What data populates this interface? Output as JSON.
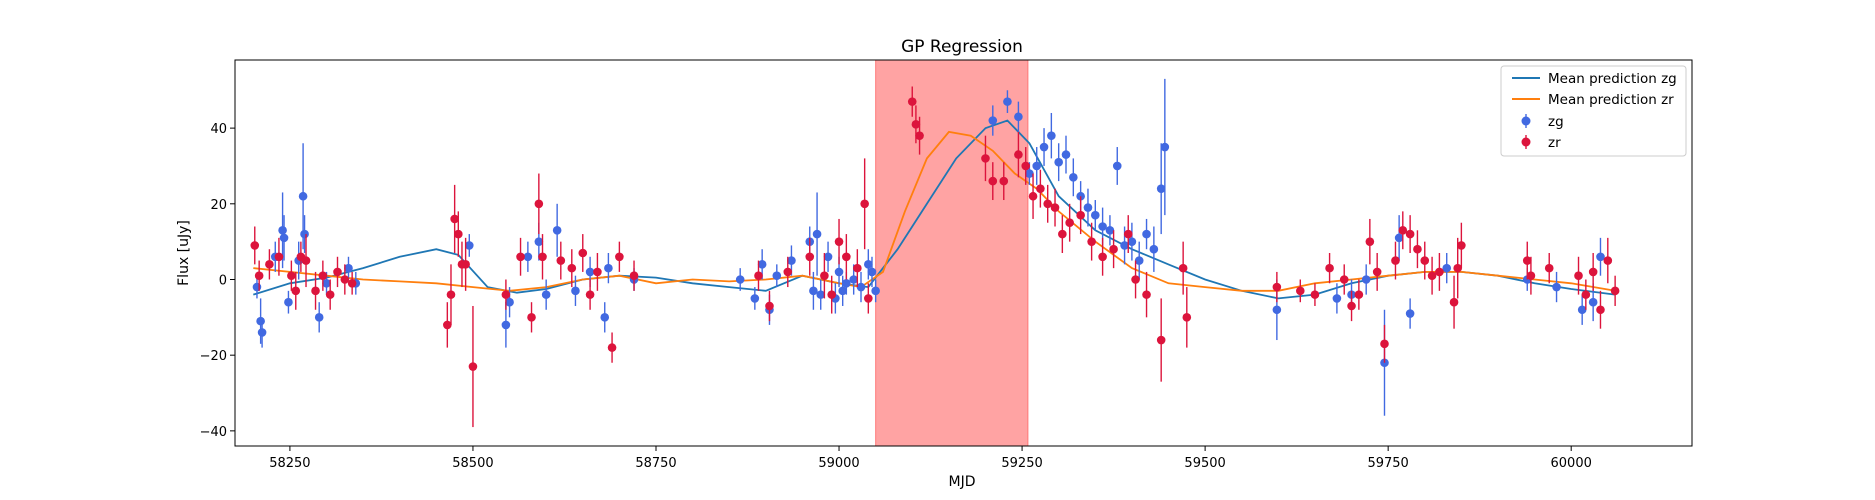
{
  "chart_data": {
    "type": "scatter",
    "title": "GP Regression",
    "xlabel": "MJD",
    "ylabel": "Flux [uJy]",
    "xlim": [
      58175,
      60165
    ],
    "ylim": [
      -44,
      58
    ],
    "xticks": [
      58250,
      58500,
      58750,
      59000,
      59250,
      59500,
      59750,
      60000
    ],
    "yticks": [
      -40,
      -20,
      0,
      20,
      40
    ],
    "grid": false,
    "legend_position": "top-right",
    "highlight_span": {
      "x": [
        59050,
        59258
      ],
      "color": "#ff6666"
    },
    "colors": {
      "zg": "#4169e1",
      "zr": "#dc143c",
      "mean_zg": "#1f77b4",
      "mean_zr": "#ff7f0e"
    },
    "legend": [
      "Mean prediction zg",
      "Mean prediction zr",
      "zg",
      "zr"
    ],
    "series": [
      {
        "name": "Mean prediction zg",
        "kind": "line",
        "x": [
          58200,
          58250,
          58300,
          58350,
          58400,
          58450,
          58480,
          58520,
          58560,
          58600,
          58650,
          58700,
          58750,
          58800,
          58850,
          58900,
          58950,
          59000,
          59040,
          59080,
          59120,
          59160,
          59200,
          59230,
          59260,
          59300,
          59350,
          59400,
          59450,
          59500,
          59550,
          59600,
          59650,
          59700,
          59750,
          59800,
          59850,
          59900,
          59950,
          60000,
          60060
        ],
        "y": [
          -4,
          -1,
          0.5,
          3,
          6,
          8,
          6.5,
          -2,
          -3.5,
          -2.5,
          0,
          1,
          0.5,
          -1,
          -2,
          -3,
          1,
          -1,
          -2,
          8,
          20,
          32,
          40,
          42,
          36,
          22,
          13,
          8,
          4,
          0,
          -3,
          -5,
          -4,
          -1,
          1,
          2,
          2,
          1,
          -1,
          -2.5,
          -4
        ]
      },
      {
        "name": "Mean prediction zr",
        "kind": "line",
        "x": [
          58200,
          58250,
          58300,
          58350,
          58400,
          58450,
          58500,
          58550,
          58600,
          58650,
          58700,
          58750,
          58800,
          58850,
          58900,
          58950,
          59000,
          59030,
          59060,
          59090,
          59120,
          59150,
          59180,
          59210,
          59240,
          59270,
          59300,
          59350,
          59400,
          59450,
          59500,
          59550,
          59600,
          59650,
          59700,
          59750,
          59800,
          59850,
          59900,
          59950,
          60000,
          60060
        ],
        "y": [
          3,
          2,
          1,
          0,
          -0.5,
          -1,
          -2,
          -3,
          -2,
          0,
          1,
          -1,
          0,
          -0.5,
          0,
          1,
          -1,
          -2,
          2,
          18,
          32,
          39,
          38,
          34,
          28,
          24,
          18,
          10,
          3,
          -1,
          -2,
          -3,
          -3,
          -1,
          0,
          1,
          2,
          2,
          1,
          0,
          -1,
          -3
        ]
      },
      {
        "name": "zg",
        "kind": "errorbar",
        "x": [
          58205,
          58210,
          58212,
          58230,
          58240,
          58242,
          58248,
          58262,
          58268,
          58270,
          58290,
          58300,
          58330,
          58340,
          58495,
          58545,
          58550,
          58575,
          58590,
          58600,
          58615,
          58640,
          58660,
          58680,
          58685,
          58720,
          58865,
          58885,
          58895,
          58905,
          58915,
          58935,
          58960,
          58965,
          58970,
          58975,
          58985,
          58995,
          59000,
          59005,
          59010,
          59020,
          59030,
          59040,
          59045,
          59050,
          59210,
          59230,
          59245,
          59260,
          59270,
          59280,
          59290,
          59300,
          59310,
          59320,
          59330,
          59340,
          59350,
          59360,
          59370,
          59380,
          59390,
          59400,
          59410,
          59420,
          59430,
          59440,
          59445,
          59598,
          59680,
          59700,
          59720,
          59745,
          59765,
          59780,
          59830,
          59940,
          59980,
          60015,
          60030,
          60040
        ],
        "y": [
          -2,
          -11,
          -14,
          6,
          13,
          11,
          -6,
          5,
          22,
          12,
          -10,
          -1,
          3,
          -1,
          9,
          -12,
          -6,
          6,
          10,
          -4,
          13,
          -3,
          2,
          -10,
          3,
          0,
          0,
          -5,
          4,
          -8,
          1,
          5,
          10,
          -3,
          12,
          -4,
          6,
          -5,
          2,
          -3,
          -1,
          0,
          -2,
          4,
          2,
          -3,
          42,
          47,
          43,
          28,
          30,
          35,
          38,
          31,
          33,
          27,
          22,
          19,
          17,
          14,
          13,
          30,
          9,
          10,
          5,
          12,
          8,
          24,
          35,
          -8,
          -5,
          -4,
          0,
          -22,
          11,
          -9,
          3,
          0,
          -2,
          -8,
          -6,
          6
        ],
        "err": [
          3,
          6,
          4,
          4,
          10,
          6,
          3,
          5,
          14,
          5,
          4,
          3,
          3,
          3,
          3,
          6,
          4,
          4,
          5,
          4,
          7,
          4,
          4,
          4,
          4,
          3,
          3,
          3,
          4,
          4,
          3,
          4,
          4,
          5,
          11,
          4,
          4,
          4,
          4,
          4,
          3,
          4,
          4,
          4,
          4,
          3,
          4,
          3,
          4,
          3,
          5,
          5,
          6,
          5,
          5,
          5,
          4,
          5,
          4,
          5,
          4,
          5,
          5,
          5,
          5,
          4,
          6,
          12,
          18,
          8,
          4,
          4,
          4,
          14,
          6,
          4,
          4,
          3,
          4,
          4,
          5,
          5
        ]
      },
      {
        "name": "zr",
        "kind": "errorbar",
        "x": [
          58202,
          58208,
          58222,
          58235,
          58252,
          58258,
          58265,
          58272,
          58285,
          58295,
          58305,
          58315,
          58325,
          58335,
          58465,
          58470,
          58475,
          58480,
          58485,
          58490,
          58500,
          58545,
          58565,
          58580,
          58590,
          58595,
          58620,
          58635,
          58650,
          58660,
          58670,
          58690,
          58700,
          58720,
          58890,
          58905,
          58930,
          58960,
          58980,
          58990,
          59000,
          59010,
          59025,
          59035,
          59040,
          59100,
          59105,
          59110,
          59200,
          59210,
          59225,
          59245,
          59255,
          59265,
          59275,
          59285,
          59295,
          59305,
          59315,
          59330,
          59345,
          59360,
          59375,
          59395,
          59405,
          59420,
          59440,
          59470,
          59475,
          59598,
          59630,
          59650,
          59670,
          59690,
          59700,
          59710,
          59725,
          59735,
          59745,
          59760,
          59770,
          59780,
          59790,
          59800,
          59810,
          59820,
          59840,
          59845,
          59850,
          59940,
          59945,
          59970,
          60010,
          60020,
          60030,
          60040,
          60050,
          60060
        ],
        "y": [
          9,
          1,
          4,
          6,
          1,
          -3,
          6,
          5,
          -3,
          1,
          -4,
          2,
          0,
          -1,
          -12,
          -4,
          16,
          12,
          4,
          4,
          -23,
          -4,
          6,
          -10,
          20,
          6,
          5,
          3,
          7,
          -4,
          2,
          -18,
          6,
          1,
          1,
          -7,
          2,
          6,
          1,
          -4,
          10,
          6,
          3,
          20,
          -5,
          47,
          41,
          38,
          32,
          26,
          26,
          33,
          30,
          22,
          24,
          20,
          19,
          12,
          15,
          17,
          10,
          6,
          8,
          12,
          0,
          -4,
          -16,
          3,
          -10,
          -2,
          -3,
          -4,
          3,
          0,
          -7,
          -4,
          10,
          2,
          -17,
          5,
          13,
          12,
          8,
          5,
          1,
          2,
          -6,
          3,
          9,
          5,
          1,
          3,
          1,
          -4,
          2,
          -8,
          5,
          -3
        ],
        "err": [
          5,
          4,
          4,
          5,
          4,
          5,
          4,
          7,
          5,
          4,
          4,
          4,
          4,
          3,
          6,
          8,
          9,
          6,
          6,
          7,
          16,
          4,
          5,
          4,
          8,
          6,
          5,
          5,
          5,
          4,
          5,
          4,
          4,
          4,
          4,
          4,
          4,
          5,
          6,
          5,
          6,
          6,
          5,
          12,
          4,
          4,
          5,
          5,
          6,
          5,
          5,
          6,
          5,
          6,
          5,
          5,
          5,
          5,
          5,
          5,
          5,
          5,
          5,
          5,
          5,
          6,
          11,
          7,
          8,
          4,
          3,
          3,
          4,
          4,
          4,
          4,
          6,
          5,
          5,
          5,
          5,
          5,
          5,
          5,
          5,
          5,
          7,
          8,
          6,
          5,
          5,
          4,
          5,
          4,
          5,
          5,
          6,
          4
        ]
      }
    ]
  }
}
